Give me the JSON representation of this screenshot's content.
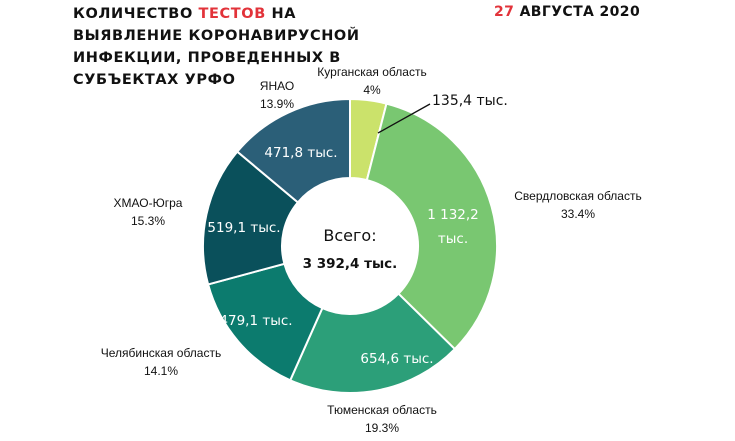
{
  "title": {
    "part1": "КОЛИЧЕСТВО ",
    "accent": "ТЕСТОВ",
    "part2": " НА ВЫЯВЛЕНИЕ КОРОНАВИРУСНОЙ ИНФЕКЦИИ, ПРОВЕДЕННЫХ В СУБЪЕКТАХ УРФО"
  },
  "date": {
    "day": "27",
    "rest": " АВГУСТА 2020"
  },
  "chart_data": {
    "type": "pie",
    "center_label": "Всего:",
    "center_total": "3 392,4 тыс.",
    "slices": [
      {
        "name": "Курганская область",
        "percent": "4%",
        "value": 135.4,
        "value_label": "135,4 тыс.",
        "color": "#cbe26b"
      },
      {
        "name": "Свердловская область",
        "percent": "33.4%",
        "value": 1132.2,
        "value_label": "1 132,2 тыс.",
        "color": "#79c771"
      },
      {
        "name": "Тюменская область",
        "percent": "19.3%",
        "value": 654.6,
        "value_label": "654,6 тыс.",
        "color": "#2c9f79"
      },
      {
        "name": "Челябинская область",
        "percent": "14.1%",
        "value": 479.1,
        "value_label": "479,1 тыс.",
        "color": "#0c7b6e"
      },
      {
        "name": "ХМАО-Югра",
        "percent": "15.3%",
        "value": 519.1,
        "value_label": "519,1 тыс.",
        "color": "#0a505b"
      },
      {
        "name": "ЯНАО",
        "percent": "13.9%",
        "value": 471.8,
        "value_label": "471,8 тыс.",
        "color": "#2b5f78"
      }
    ]
  }
}
